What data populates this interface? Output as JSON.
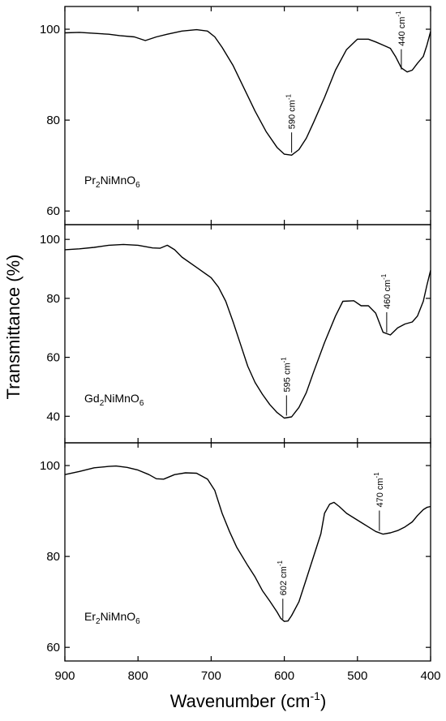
{
  "chart_data": {
    "type": "line",
    "shared_x_axis": {
      "label": "Wavenumber (cm",
      "label_superscript": "-1",
      "label_suffix": ")",
      "range": [
        900,
        400
      ],
      "reversed": true,
      "ticks": [
        900,
        800,
        700,
        600,
        500,
        400
      ]
    },
    "y_axis_label": "Transmittance (%)",
    "grid": false,
    "panels": [
      {
        "sample": {
          "base": [
            "Pr",
            "NiMnO"
          ],
          "subs": [
            "2",
            "6"
          ]
        },
        "ylim": [
          57,
          105
        ],
        "yticks": [
          60,
          80,
          100
        ],
        "series": {
          "x": [
            900,
            880,
            860,
            840,
            825,
            805,
            790,
            775,
            760,
            740,
            720,
            705,
            695,
            685,
            670,
            655,
            640,
            625,
            610,
            600,
            590,
            580,
            570,
            560,
            545,
            530,
            515,
            500,
            485,
            475,
            465,
            455,
            448,
            440,
            432,
            425,
            418,
            410,
            405,
            400
          ],
          "y": [
            99.2,
            99.3,
            99.1,
            98.9,
            98.6,
            98.3,
            97.5,
            98.3,
            98.9,
            99.6,
            99.9,
            99.6,
            98.3,
            96,
            92,
            87,
            82,
            77.5,
            74,
            72.5,
            72.3,
            73.5,
            76,
            79.5,
            85,
            91,
            95.5,
            97.8,
            97.8,
            97.2,
            96.5,
            95.8,
            94,
            91.5,
            90.6,
            91,
            92.5,
            94,
            96.5,
            99.5
          ]
        },
        "annotations": [
          {
            "label": "590 cm",
            "sup": "-1",
            "x": 590,
            "y": 72.3
          },
          {
            "label": "440 cm",
            "sup": "-1",
            "x": 440,
            "y": 90.6
          }
        ]
      },
      {
        "sample": {
          "base": [
            "Gd",
            "NiMnO"
          ],
          "subs": [
            "2",
            "6"
          ]
        },
        "ylim": [
          31,
          105
        ],
        "yticks": [
          40,
          60,
          80,
          100
        ],
        "series": {
          "x": [
            900,
            880,
            860,
            840,
            820,
            800,
            780,
            770,
            760,
            750,
            740,
            720,
            700,
            690,
            680,
            670,
            660,
            650,
            640,
            630,
            620,
            610,
            600,
            590,
            580,
            570,
            560,
            545,
            530,
            520,
            505,
            495,
            485,
            475,
            465,
            455,
            445,
            435,
            425,
            418,
            410,
            405,
            400
          ],
          "y": [
            96.5,
            96.8,
            97.3,
            98,
            98.3,
            98,
            97.1,
            97,
            98,
            96.5,
            94,
            90.5,
            87,
            83.8,
            79,
            72,
            64.5,
            57,
            51.5,
            47.5,
            44,
            41.3,
            39.4,
            39.8,
            43,
            48,
            55,
            65,
            74,
            79,
            79.2,
            77.5,
            77.5,
            75,
            68.5,
            67.6,
            70,
            71.3,
            72,
            74,
            79,
            84.5,
            89.5
          ]
        },
        "annotations": [
          {
            "label": "595 cm",
            "sup": "-1",
            "x": 597,
            "y": 39.4
          },
          {
            "label": "460 cm",
            "sup": "-1",
            "x": 460,
            "y": 67.6
          }
        ]
      },
      {
        "sample": {
          "base": [
            "Er",
            "NiMnO"
          ],
          "subs": [
            "2",
            "6"
          ]
        },
        "ylim": [
          57,
          105
        ],
        "yticks": [
          60,
          80,
          100
        ],
        "series": {
          "x": [
            900,
            880,
            860,
            840,
            830,
            815,
            800,
            785,
            775,
            765,
            750,
            735,
            720,
            705,
            695,
            685,
            675,
            665,
            650,
            640,
            630,
            620,
            610,
            605,
            600,
            595,
            590,
            580,
            570,
            560,
            550,
            545,
            538,
            532,
            525,
            515,
            505,
            495,
            485,
            475,
            465,
            455,
            445,
            435,
            425,
            418,
            410,
            405,
            400
          ],
          "y": [
            98,
            98.7,
            99.5,
            99.8,
            99.9,
            99.6,
            99,
            98,
            97.1,
            97,
            98,
            98.4,
            98.3,
            97,
            94.5,
            89.5,
            85.5,
            82,
            78,
            75.5,
            72.5,
            70.2,
            67.8,
            66.4,
            65.7,
            65.8,
            67,
            70,
            75,
            80,
            85,
            89.5,
            91.5,
            91.9,
            91,
            89.5,
            88.5,
            87.5,
            86.5,
            85.5,
            84.9,
            85.2,
            85.7,
            86.5,
            87.6,
            89,
            90.3,
            90.8,
            91
          ]
        },
        "annotations": [
          {
            "label": "602 cm",
            "sup": "-1",
            "x": 602,
            "y": 65.7
          },
          {
            "label": "470 cm",
            "sup": "-1",
            "x": 470,
            "y": 85.1
          }
        ]
      }
    ]
  }
}
